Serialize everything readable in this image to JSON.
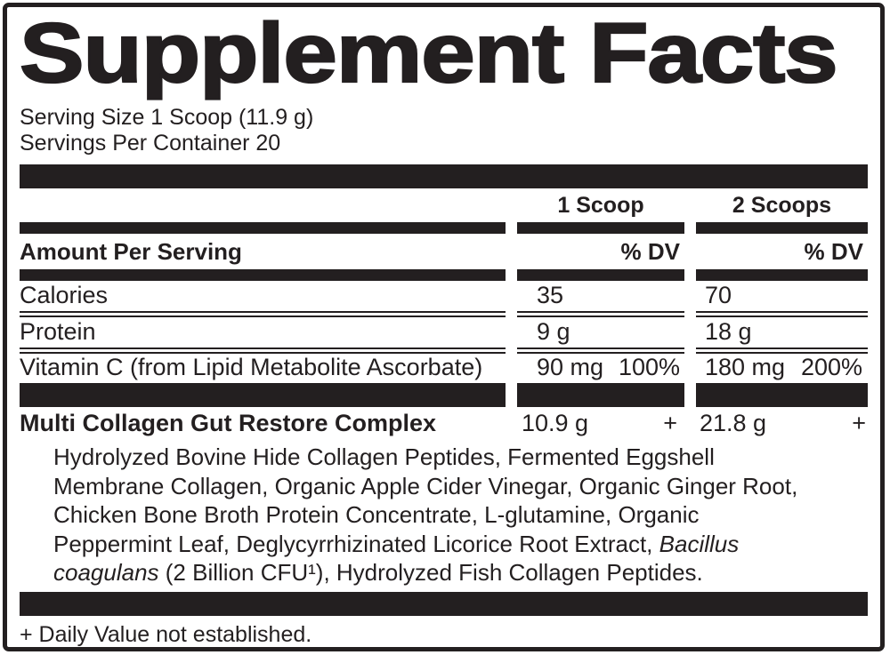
{
  "label": {
    "title": "Supplement Facts",
    "serving_size": "Serving Size 1 Scoop (11.9 g)",
    "servings_per_container": "Servings Per Container 20",
    "columns": {
      "col1": "1 Scoop",
      "col2": "2 Scoops"
    },
    "amount_per_serving": "Amount Per Serving",
    "percent_dv": "% DV",
    "rows": [
      {
        "name": "Calories",
        "col1_amount": "35",
        "col1_dv": "",
        "col2_amount": "70",
        "col2_dv": ""
      },
      {
        "name": "Protein",
        "col1_amount": "9 g",
        "col1_dv": "",
        "col2_amount": "18 g",
        "col2_dv": ""
      },
      {
        "name": "Vitamin C (from Lipid Metabolite Ascorbate)",
        "col1_amount": "90 mg",
        "col1_dv": "100%",
        "col2_amount": "180 mg",
        "col2_dv": "200%"
      }
    ],
    "complex": {
      "name": "Multi Collagen Gut Restore Complex",
      "col1_amount": "10.9 g",
      "col1_dv": "+",
      "col2_amount": "21.8 g",
      "col2_dv": "+"
    },
    "ingredients": {
      "line1": "Hydrolyzed Bovine Hide Collagen Peptides, Fermented Eggshell",
      "line2": "Membrane Collagen, Organic Apple Cider Vinegar, Organic Ginger Root,",
      "line3": "Chicken Bone Broth Protein Concentrate, L-glutamine, Organic",
      "line4_regular": "Peppermint Leaf, Deglycyrrhizinated Licorice Root Extract, ",
      "line4_italic": "Bacillus",
      "line5_italic": "coagulans",
      "line5_regular": " (2 Billion CFU¹), Hydrolyzed Fish Collagen Peptides."
    },
    "footnote": "+ Daily Value not established.",
    "colors": {
      "ink": "#231f20",
      "background": "#ffffff"
    }
  }
}
